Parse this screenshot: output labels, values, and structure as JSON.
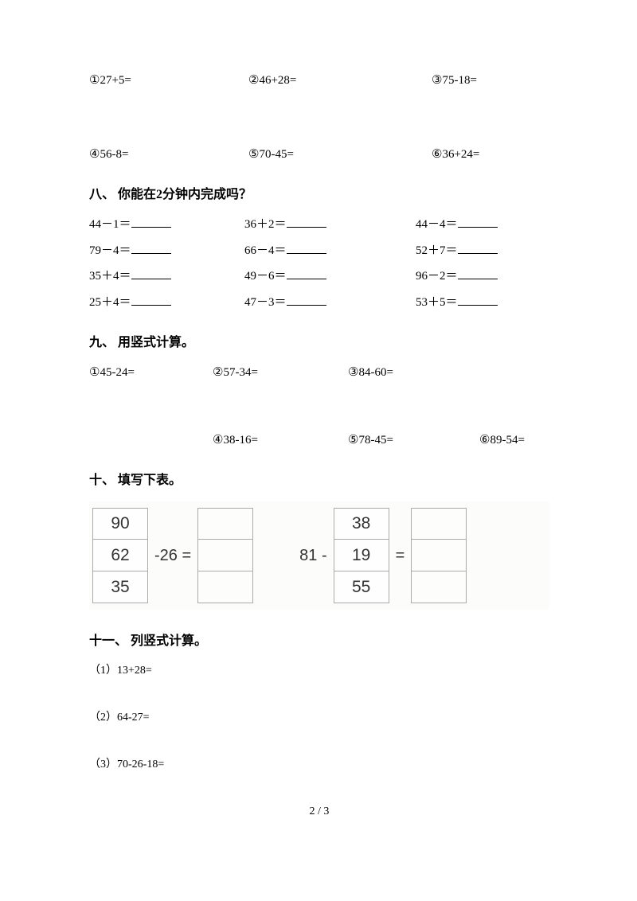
{
  "section_top": {
    "row1": [
      "①27+5=",
      "②46+28=",
      "③75-18="
    ],
    "row2": [
      "④56-8=",
      "⑤70-45=",
      "⑥36+24="
    ]
  },
  "section8": {
    "heading": "八、 你能在2分钟内完成吗？",
    "rows": [
      [
        "44－1＝",
        "36＋2＝",
        "44－4＝"
      ],
      [
        "79－4＝",
        "66－4＝",
        "52＋7＝"
      ],
      [
        "35＋4＝",
        "49－6＝",
        "96－2＝"
      ],
      [
        "25＋4＝",
        "47－3＝",
        "53＋5＝"
      ]
    ]
  },
  "section9": {
    "heading": "九、 用竖式计算。",
    "row1": [
      "①45-24=",
      "②57-34=",
      "③84-60="
    ],
    "row2": [
      "④38-16=",
      "⑤78-45=",
      "⑥89-54="
    ]
  },
  "section10": {
    "heading": "十、 填写下表。",
    "left": {
      "col1": [
        "90",
        "62",
        "35"
      ],
      "op": "-26 ="
    },
    "right": {
      "pre": "81 -",
      "col1": [
        "38",
        "19",
        "55"
      ],
      "post": "="
    }
  },
  "section11": {
    "heading": "十一、 列竖式计算。",
    "items": [
      "（1）13+28=",
      "（2）64-27=",
      "（3）70-26-18="
    ]
  },
  "footer": "2 / 3"
}
